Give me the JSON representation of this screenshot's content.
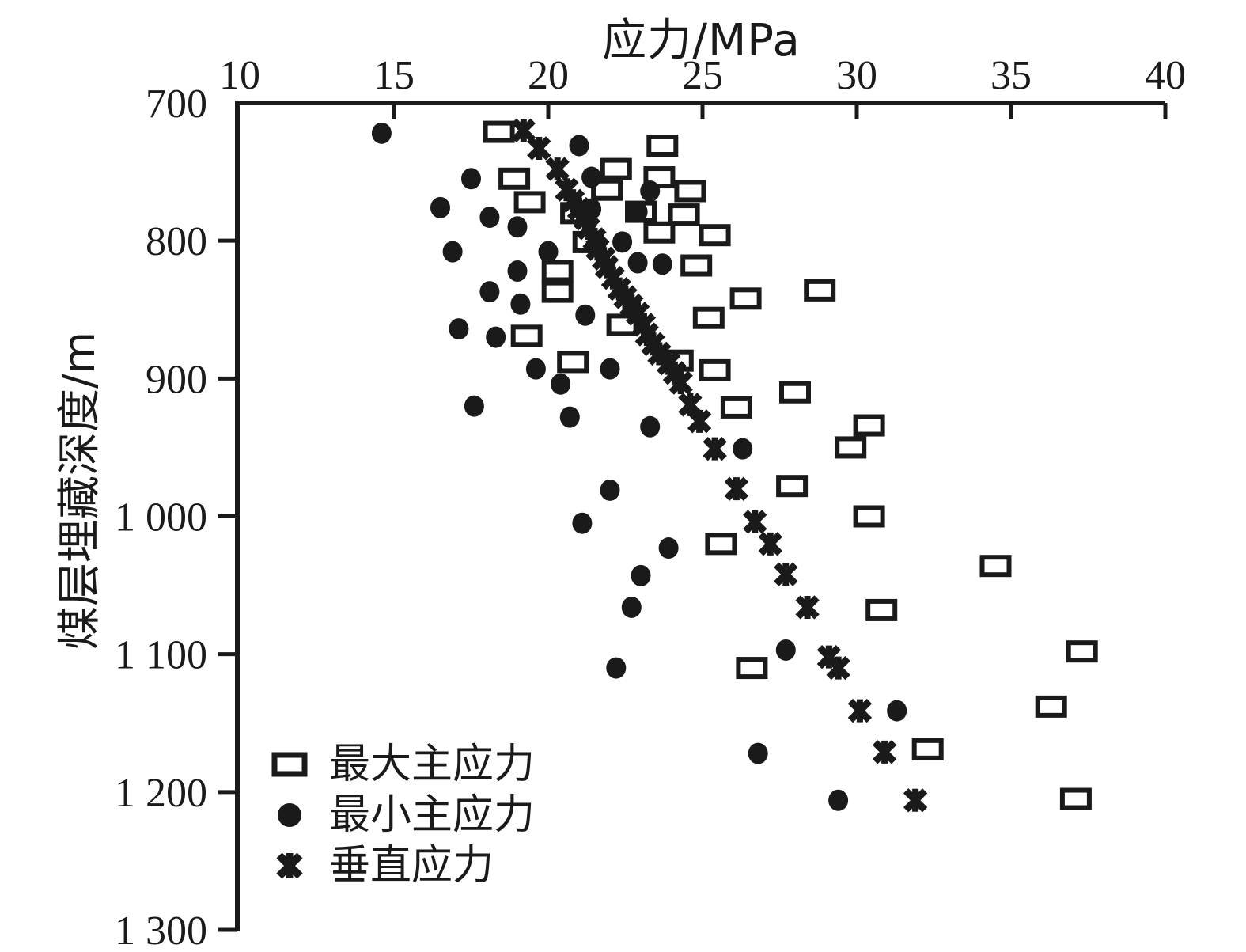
{
  "figure": {
    "title": "应力/MPa",
    "y_axis_title": "煤层埋藏深度/m",
    "ink_color": "#1a1a1a",
    "background_color": "#ffffff"
  },
  "chart_data": {
    "type": "scatter",
    "title": "应力/MPa",
    "xlabel": "应力/MPa",
    "ylabel": "煤层埋藏深度/m",
    "x_axis": {
      "min": 10,
      "max": 40,
      "position": "top",
      "ticks": [
        {
          "value": 10,
          "label": "10"
        },
        {
          "value": 15,
          "label": "15"
        },
        {
          "value": 20,
          "label": "20"
        },
        {
          "value": 25,
          "label": "25"
        },
        {
          "value": 30,
          "label": "30"
        },
        {
          "value": 35,
          "label": "35"
        },
        {
          "value": 40,
          "label": "40"
        }
      ]
    },
    "y_axis": {
      "min": 700,
      "max": 1300,
      "inverted": true,
      "position": "left",
      "ticks": [
        {
          "value": 700,
          "label": "700"
        },
        {
          "value": 800,
          "label": "800"
        },
        {
          "value": 900,
          "label": "900"
        },
        {
          "value": 1000,
          "label": "1 000"
        },
        {
          "value": 1100,
          "label": "1 100"
        },
        {
          "value": 1200,
          "label": "1 200"
        },
        {
          "value": 1300,
          "label": "1 300"
        }
      ]
    },
    "grid": false,
    "legend_position": "bottom-left",
    "series": [
      {
        "name": "最大主应力",
        "marker": "open-square",
        "points": [
          [
            18.4,
            721
          ],
          [
            23.7,
            731
          ],
          [
            22.2,
            748
          ],
          [
            23.6,
            754
          ],
          [
            18.9,
            755
          ],
          [
            21.9,
            763
          ],
          [
            24.6,
            764
          ],
          [
            19.4,
            772
          ],
          [
            23.0,
            779
          ],
          [
            20.9,
            780
          ],
          [
            24.4,
            781
          ],
          [
            23.6,
            794
          ],
          [
            25.4,
            796
          ],
          [
            21.3,
            801
          ],
          [
            24.8,
            818
          ],
          [
            20.3,
            822
          ],
          [
            28.8,
            836
          ],
          [
            20.3,
            837
          ],
          [
            26.4,
            842
          ],
          [
            25.2,
            856
          ],
          [
            22.4,
            861
          ],
          [
            19.3,
            869
          ],
          [
            24.2,
            887
          ],
          [
            20.8,
            888
          ],
          [
            25.4,
            894
          ],
          [
            28.0,
            910
          ],
          [
            26.1,
            921
          ],
          [
            30.4,
            934
          ],
          [
            29.8,
            950
          ],
          [
            27.9,
            978
          ],
          [
            30.4,
            1000
          ],
          [
            25.6,
            1020
          ],
          [
            34.5,
            1036
          ],
          [
            30.8,
            1068
          ],
          [
            37.3,
            1098
          ],
          [
            26.6,
            1110
          ],
          [
            36.3,
            1138
          ],
          [
            32.3,
            1169
          ],
          [
            37.1,
            1205
          ]
        ]
      },
      {
        "name": "最小主应力",
        "marker": "filled-circle",
        "points": [
          [
            14.6,
            722
          ],
          [
            21.0,
            731
          ],
          [
            21.4,
            754
          ],
          [
            17.5,
            755
          ],
          [
            23.3,
            764
          ],
          [
            16.5,
            776
          ],
          [
            21.4,
            777
          ],
          [
            22.9,
            779
          ],
          [
            18.1,
            783
          ],
          [
            19.0,
            790
          ],
          [
            22.4,
            801
          ],
          [
            16.9,
            808
          ],
          [
            20.0,
            808
          ],
          [
            22.9,
            816
          ],
          [
            23.7,
            817
          ],
          [
            19.0,
            822
          ],
          [
            18.1,
            837
          ],
          [
            19.1,
            846
          ],
          [
            21.2,
            854
          ],
          [
            17.1,
            864
          ],
          [
            18.3,
            870
          ],
          [
            19.6,
            893
          ],
          [
            22.0,
            893
          ],
          [
            20.4,
            904
          ],
          [
            17.6,
            920
          ],
          [
            20.7,
            928
          ],
          [
            23.3,
            935
          ],
          [
            26.3,
            951
          ],
          [
            22.0,
            981
          ],
          [
            21.1,
            1005
          ],
          [
            23.9,
            1023
          ],
          [
            23.0,
            1043
          ],
          [
            22.7,
            1066
          ],
          [
            27.7,
            1097
          ],
          [
            22.2,
            1110
          ],
          [
            31.3,
            1141
          ],
          [
            26.8,
            1172
          ],
          [
            29.4,
            1206
          ]
        ]
      },
      {
        "name": "垂直应力",
        "marker": "asterisk",
        "points": [
          [
            19.2,
            720
          ],
          [
            19.7,
            733
          ],
          [
            20.3,
            748
          ],
          [
            20.6,
            763
          ],
          [
            20.8,
            771
          ],
          [
            21.0,
            777
          ],
          [
            21.2,
            784
          ],
          [
            21.3,
            791
          ],
          [
            21.5,
            799
          ],
          [
            21.6,
            806
          ],
          [
            21.8,
            813
          ],
          [
            21.9,
            819
          ],
          [
            22.1,
            827
          ],
          [
            22.3,
            835
          ],
          [
            22.5,
            841
          ],
          [
            22.7,
            847
          ],
          [
            22.9,
            853
          ],
          [
            23.1,
            861
          ],
          [
            23.2,
            868
          ],
          [
            23.4,
            875
          ],
          [
            23.6,
            882
          ],
          [
            23.9,
            889
          ],
          [
            24.1,
            896
          ],
          [
            24.3,
            903
          ],
          [
            24.6,
            919
          ],
          [
            24.9,
            931
          ],
          [
            25.4,
            951
          ],
          [
            26.1,
            980
          ],
          [
            26.7,
            1004
          ],
          [
            27.2,
            1020
          ],
          [
            27.7,
            1042
          ],
          [
            28.4,
            1066
          ],
          [
            29.1,
            1102
          ],
          [
            29.4,
            1110
          ],
          [
            30.1,
            1141
          ],
          [
            30.9,
            1171
          ],
          [
            31.9,
            1206
          ]
        ]
      }
    ]
  }
}
